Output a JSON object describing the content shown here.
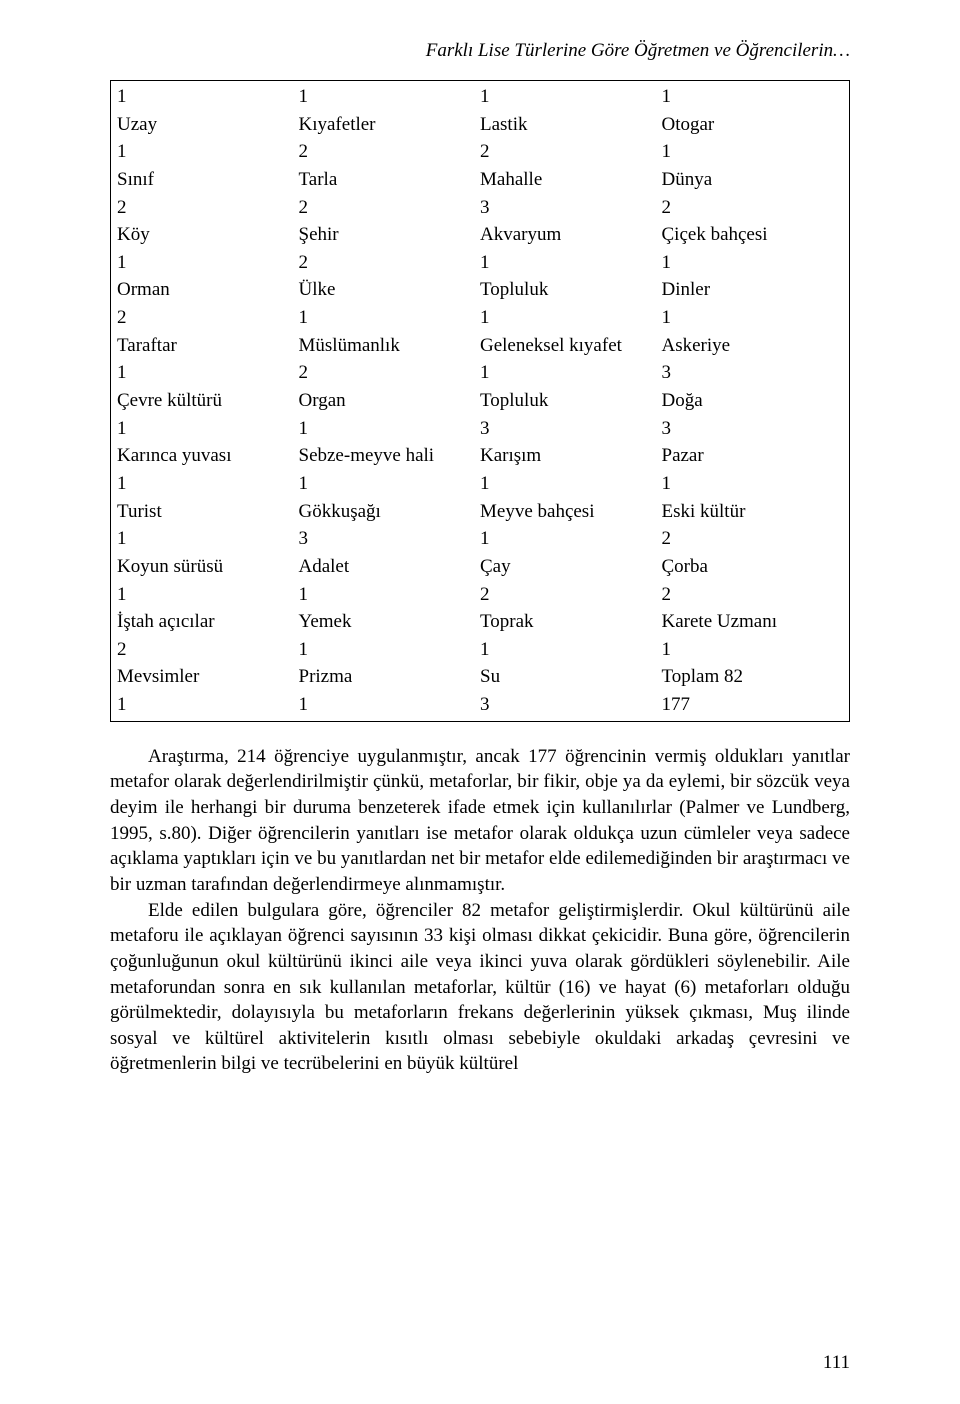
{
  "header": {
    "title": "Farklı Lise Türlerine Göre Öğretmen ve Öğrencilerin…"
  },
  "table": {
    "rows": [
      [
        "1",
        "1",
        "1",
        "1"
      ],
      [
        "Uzay",
        "Kıyafetler",
        "Lastik",
        "Otogar"
      ],
      [
        "1",
        "2",
        "2",
        "1"
      ],
      [
        "Sınıf",
        "Tarla",
        "Mahalle",
        "Dünya"
      ],
      [
        "2",
        "2",
        "3",
        "2"
      ],
      [
        "Köy",
        "Şehir",
        "Akvaryum",
        "Çiçek bahçesi"
      ],
      [
        "1",
        "2",
        "1",
        "1"
      ],
      [
        "Orman",
        "Ülke",
        "Topluluk",
        "Dinler"
      ],
      [
        "2",
        "1",
        "1",
        "1"
      ],
      [
        "Taraftar",
        "Müslümanlık",
        "Geleneksel kıyafet",
        "Askeriye"
      ],
      [
        "1",
        "2",
        "1",
        "3"
      ],
      [
        "Çevre kültürü",
        "Organ",
        "Topluluk",
        "Doğa"
      ],
      [
        "1",
        "1",
        "3",
        "3"
      ],
      [
        "Karınca yuvası",
        "Sebze-meyve hali",
        "Karışım",
        "Pazar"
      ],
      [
        "1",
        "1",
        "1",
        "1"
      ],
      [
        "Turist",
        "Gökkuşağı",
        "Meyve bahçesi",
        "Eski kültür"
      ],
      [
        "1",
        "3",
        "1",
        "2"
      ],
      [
        "Koyun sürüsü",
        "Adalet",
        "Çay",
        "Çorba"
      ],
      [
        "1",
        "1",
        "2",
        "2"
      ],
      [
        "İştah açıcılar",
        "Yemek",
        "Toprak",
        "Karete Uzmanı"
      ],
      [
        "2",
        "1",
        "1",
        "1"
      ],
      [
        "Mevsimler",
        "Prizma",
        "Su",
        "Toplam 82"
      ],
      [
        "1",
        "1",
        "3",
        "177"
      ]
    ]
  },
  "paragraphs": {
    "p1": "Araştırma, 214 öğrenciye uygulanmıştır, ancak 177 öğrencinin vermiş oldukları yanıtlar metafor olarak değerlendirilmiştir çünkü, metaforlar, bir fikir, obje ya da eylemi, bir sözcük veya deyim ile herhangi bir duruma benzeterek ifade etmek için kullanılırlar (Palmer ve Lundberg, 1995, s.80). Diğer öğrencilerin yanıtları ise metafor olarak oldukça uzun cümleler veya sadece açıklama yaptıkları için ve bu yanıtlardan net bir metafor elde edilemediğinden bir araştırmacı ve bir uzman tarafından değerlendirmeye alınmamıştır.",
    "p2": "Elde edilen bulgulara göre, öğrenciler 82 metafor geliştirmişlerdir. Okul kültürünü aile metaforu ile açıklayan öğrenci sayısının 33 kişi olması dikkat çekicidir. Buna göre, öğrencilerin çoğunluğunun okul kültürünü  ikinci aile veya ikinci yuva olarak gördükleri söylenebilir. Aile metaforundan sonra en sık kullanılan metaforlar, kültür (16) ve hayat (6) metaforları olduğu görülmektedir, dolayısıyla bu metaforların frekans değerlerinin yüksek çıkması, Muş ilinde sosyal ve kültürel aktivitelerin kısıtlı olması sebebiyle okuldaki arkadaş çevresini ve öğretmenlerin bilgi ve tecrübelerini en büyük kültürel"
  },
  "pageNumber": "111"
}
